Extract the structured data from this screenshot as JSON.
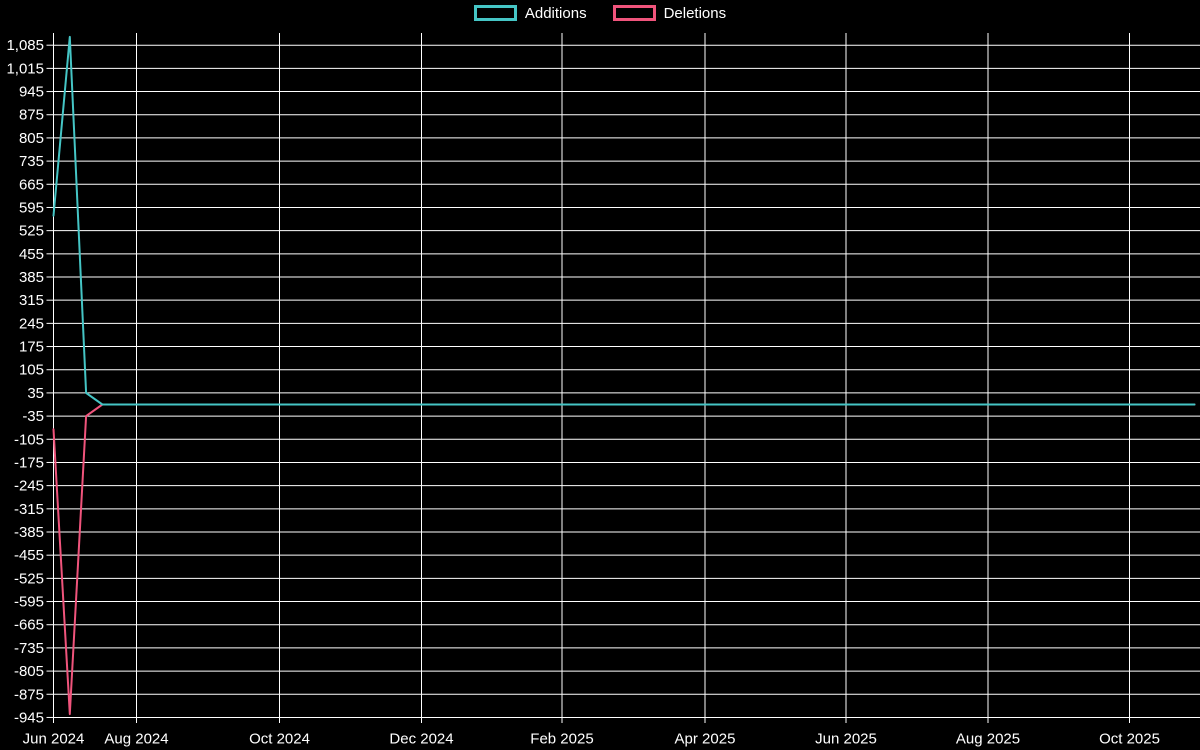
{
  "page": {
    "background_color": "#000000",
    "text_color": "#ffffff",
    "gridline_color": "#ffffff"
  },
  "legend": {
    "position": "top-center",
    "items": [
      {
        "label": "Additions",
        "color": "#45c5c5"
      },
      {
        "label": "Deletions",
        "color": "#f0547c"
      }
    ]
  },
  "chart_data": {
    "type": "line",
    "title": "",
    "xlabel": "",
    "ylabel": "",
    "grid": true,
    "legend_position": "top-center",
    "x_axis": {
      "tick_labels": [
        "Jun 2024",
        "Aug 2024",
        "Oct 2024",
        "Dec 2024",
        "Feb 2025",
        "Apr 2025",
        "Jun 2025",
        "Aug 2025",
        "Oct 2025"
      ],
      "unit": "weekly points starting late Jun 2024"
    },
    "y_axis": {
      "tick_values": [
        1085,
        1015,
        945,
        875,
        805,
        735,
        665,
        595,
        525,
        455,
        385,
        315,
        245,
        175,
        105,
        35,
        -35,
        -105,
        -175,
        -245,
        -315,
        -385,
        -455,
        -525,
        -595,
        -665,
        -735,
        -805,
        -875,
        -945
      ],
      "tick_step": 70,
      "range_shown": [
        -945,
        1085
      ]
    },
    "series": [
      {
        "name": "Additions",
        "color": "#45c5c5",
        "weeks_total": 71,
        "default_value": 0,
        "nonzero_points": {
          "0": 570,
          "1": 1110,
          "2": 35
        }
      },
      {
        "name": "Deletions",
        "color": "#f0547c",
        "weeks_total": 71,
        "default_value": 0,
        "nonzero_points": {
          "0": -75,
          "1": -935,
          "2": -35
        }
      }
    ]
  }
}
